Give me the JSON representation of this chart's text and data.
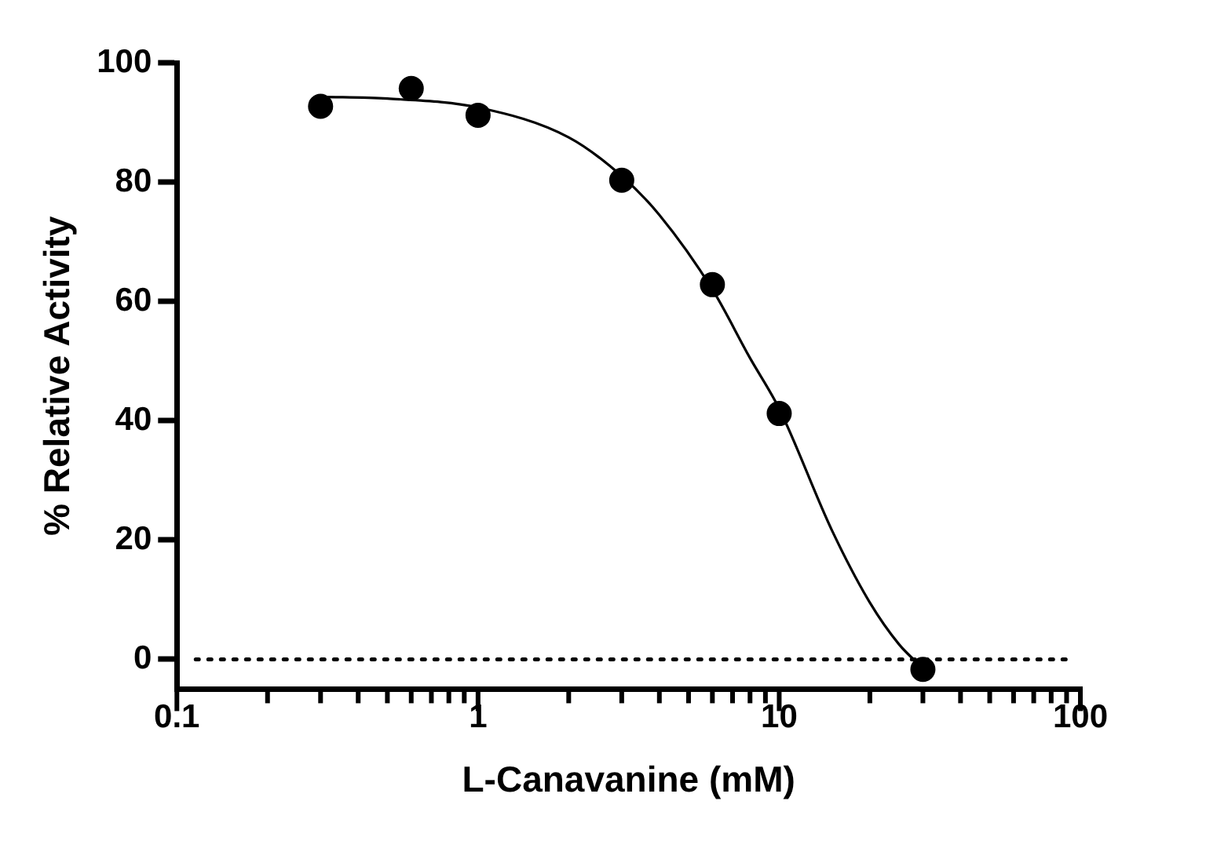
{
  "chart_data": {
    "type": "scatter",
    "xlabel": "L-Canavanine (mM)",
    "ylabel": "% Relative Activity",
    "log": "x",
    "x": [
      0.3,
      0.6,
      1,
      3,
      6,
      10,
      30
    ],
    "series": [
      {
        "color": "#000000",
        "marker": "circle",
        "values": [
          92.7,
          95.7,
          91.2,
          80.3,
          62.8,
          41.2,
          -1.7
        ]
      },
      {
        "type": "line",
        "color": "#000000",
        "marker": "none",
        "line_style": "solid",
        "x": [
          0.3,
          0.5,
          1,
          2,
          3,
          4,
          6,
          8,
          10,
          15,
          20,
          25,
          30
        ],
        "values": [
          94.3,
          94,
          92.5,
          87.5,
          81,
          74.5,
          62,
          50.5,
          42,
          21.5,
          9.5,
          2.5,
          -1.5
        ]
      }
    ],
    "xlim": [
      0.1,
      100
    ],
    "xticks": [
      0.1,
      {
        "value": 0.2,
        "label": null
      },
      {
        "value": 0.3,
        "label": null
      },
      {
        "value": 0.4,
        "label": null
      },
      {
        "value": 0.5,
        "label": null
      },
      {
        "value": 0.6,
        "label": null
      },
      {
        "value": 0.7,
        "label": null
      },
      {
        "value": 0.8,
        "label": null
      },
      {
        "value": 0.9,
        "label": null
      },
      1,
      {
        "value": 2,
        "label": null
      },
      {
        "value": 3,
        "label": null
      },
      {
        "value": 4,
        "label": null
      },
      {
        "value": 5,
        "label": null
      },
      {
        "value": 6,
        "label": null
      },
      {
        "value": 7,
        "label": null
      },
      {
        "value": 8,
        "label": null
      },
      {
        "value": 9,
        "label": null
      },
      10,
      {
        "value": 20,
        "label": null
      },
      {
        "value": 30,
        "label": null
      },
      {
        "value": 40,
        "label": null
      },
      {
        "value": 50,
        "label": null
      },
      {
        "value": 60,
        "label": null
      },
      {
        "value": 70,
        "label": null
      },
      {
        "value": 80,
        "label": null
      },
      {
        "value": 90,
        "label": null
      },
      100
    ],
    "ylim": [
      -5,
      100
    ],
    "yticks": [
      0,
      20,
      40,
      60,
      80,
      100
    ],
    "ref_lines": [
      {
        "axis": "y",
        "value": 0,
        "color": "#000000",
        "line_style": "dotted"
      }
    ],
    "grid": false,
    "legend": false
  }
}
